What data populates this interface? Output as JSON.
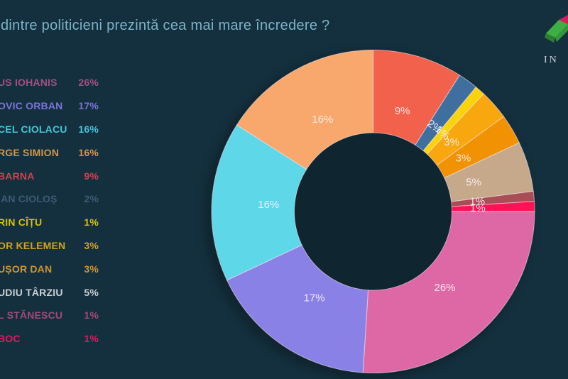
{
  "header": {
    "title": "dintre politicieni prezintă cea mai mare încredere ?"
  },
  "branding": {
    "logo_text": "IN",
    "logo_green": "#3fae45",
    "logo_green_dark": "#2c7e35",
    "logo_crimson": "#d81b5e"
  },
  "theme": {
    "background": "#14303e",
    "title_color": "#7db3c8",
    "slice_label_color": "#fdf3f6"
  },
  "legend": {
    "items": [
      {
        "name": "US IOHANIS",
        "value": "26%",
        "color": "#9d5286"
      },
      {
        "name": "OVIC ORBAN",
        "value": "17%",
        "color": "#7a73d9"
      },
      {
        "name": "CEL CIOLACU",
        "value": "16%",
        "color": "#45c5da"
      },
      {
        "name": "RGE SIMION",
        "value": "16%",
        "color": "#d4964d"
      },
      {
        "name": "BARNA",
        "value": "9%",
        "color": "#c74450"
      },
      {
        "name": "IAN CIOLOȘ",
        "value": "2%",
        "color": "#3d5a75"
      },
      {
        "name": "RIN CÎȚU",
        "value": "1%",
        "color": "#d3c115"
      },
      {
        "name": "OR KELEMEN",
        "value": "3%",
        "color": "#cfa21f"
      },
      {
        "name": "UȘOR DAN",
        "value": "3%",
        "color": "#d2952f"
      },
      {
        "name": "UDIU TÂRZIU",
        "value": "5%",
        "color": "#c9ced4"
      },
      {
        "name": "L STĂNESCU",
        "value": "1%",
        "color": "#a04a76"
      },
      {
        "name": "BOC",
        "value": "1%",
        "color": "#e31960"
      }
    ]
  },
  "chart_data": {
    "type": "donut",
    "title": "dintre politicieni prezintă cea mai mare încredere ?",
    "start_angle_deg": 0,
    "direction": "clockwise",
    "labels": "percent",
    "slices": [
      {
        "label": "BARNA",
        "percent": 9,
        "display": "9%",
        "color": "#f2614c",
        "label_rotation": 0
      },
      {
        "label": "IAN CIOLOȘ",
        "percent": 2,
        "display": "2%",
        "color": "#3f6f9f",
        "label_rotation": 36
      },
      {
        "label": "RIN CÎȚU",
        "percent": 1,
        "display": "1%",
        "color": "#fbd30b",
        "label_rotation": 41
      },
      {
        "label": "OR KELEMEN",
        "percent": 3,
        "display": "3%",
        "color": "#f8a70f",
        "label_rotation": 0
      },
      {
        "label": "UȘOR DAN",
        "percent": 3,
        "display": "3%",
        "color": "#f19202",
        "label_rotation": 0
      },
      {
        "label": "UDIU TÂRZIU",
        "percent": 5,
        "display": "5%",
        "color": "#c6a88b",
        "label_rotation": 0
      },
      {
        "label": "L STĂNESCU",
        "percent": 1,
        "display": "1%",
        "color": "#a94e57",
        "label_rotation": 0
      },
      {
        "label": "BOC",
        "percent": 1,
        "display": "1%",
        "color": "#fe1257",
        "label_rotation": 0
      },
      {
        "label": "US IOHANIS",
        "percent": 26,
        "display": "26%",
        "color": "#de68a6",
        "label_rotation": 0
      },
      {
        "label": "OVIC ORBAN",
        "percent": 17,
        "display": "17%",
        "color": "#8a81e6",
        "label_rotation": 0
      },
      {
        "label": "CEL CIOLACU",
        "percent": 16,
        "display": "16%",
        "color": "#5ed7e9",
        "label_rotation": 0
      },
      {
        "label": "RGE SIMION",
        "percent": 16,
        "display": "16%",
        "color": "#f8a86c",
        "label_rotation": 0
      }
    ]
  }
}
